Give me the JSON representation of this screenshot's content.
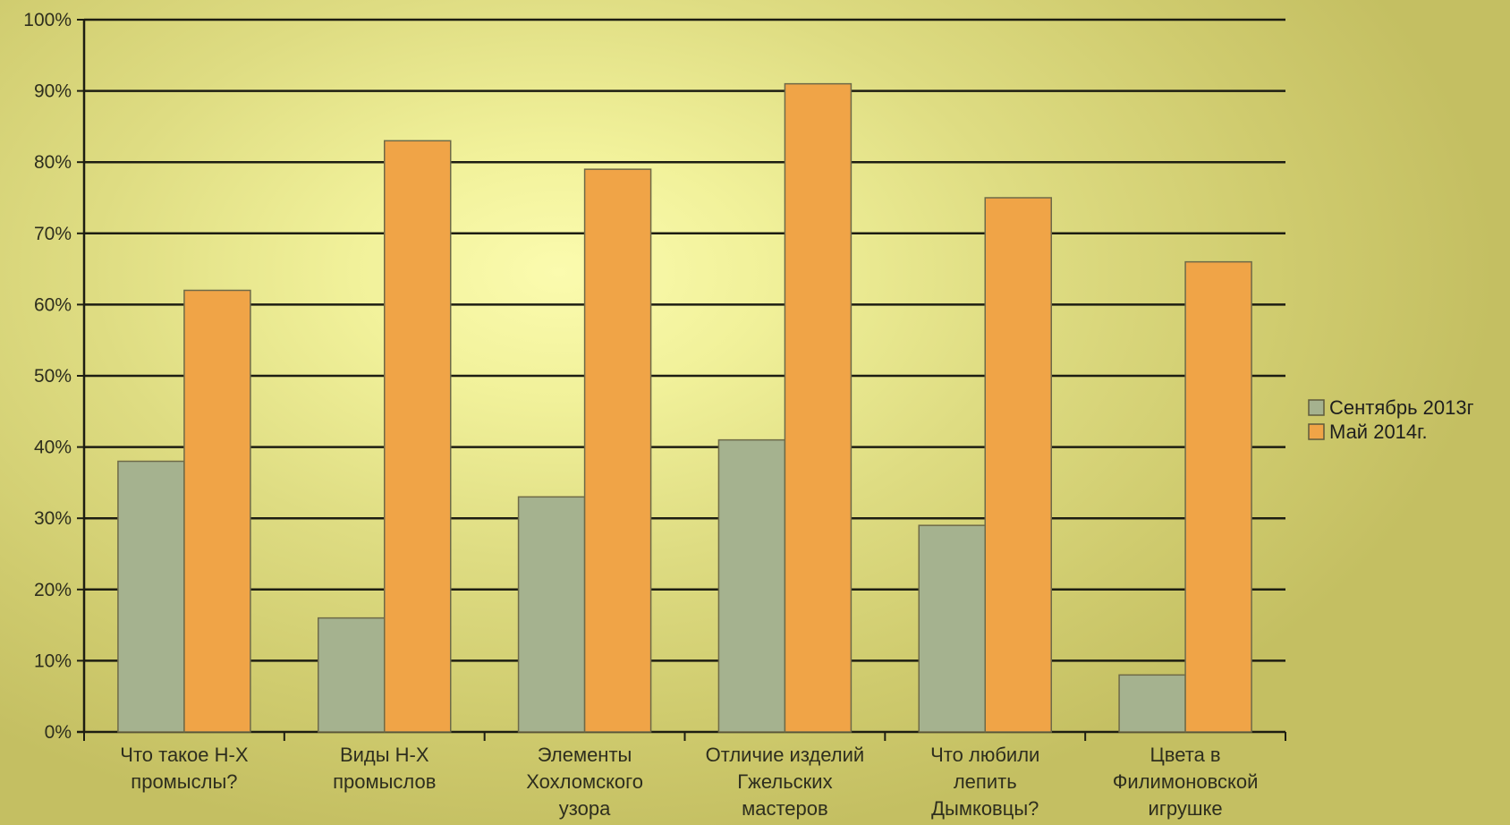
{
  "chart_data": {
    "type": "bar",
    "categories": [
      [
        "Что такое Н-Х",
        "промыслы?"
      ],
      [
        "Виды Н-Х",
        "промыслов"
      ],
      [
        "Элементы",
        "Хохломского",
        "узора"
      ],
      [
        "Отличие изделий",
        "Гжельских",
        "мастеров"
      ],
      [
        "Что любили",
        "лепить",
        "Дымковцы?"
      ],
      [
        "Цвета в",
        "Филимоновской",
        "игрушке"
      ]
    ],
    "series": [
      {
        "name": "Сентябрь 2013г",
        "color": "#a5b28f",
        "values": [
          38,
          16,
          33,
          41,
          29,
          8
        ]
      },
      {
        "name": "Май 2014г.",
        "color": "#f0a447",
        "values": [
          62,
          83,
          79,
          91,
          75,
          66
        ]
      }
    ],
    "y_ticks": [
      "0%",
      "10%",
      "20%",
      "30%",
      "40%",
      "50%",
      "60%",
      "70%",
      "80%",
      "90%",
      "100%"
    ],
    "ylim": [
      0,
      100
    ],
    "grid": true,
    "legend_position": "right"
  }
}
